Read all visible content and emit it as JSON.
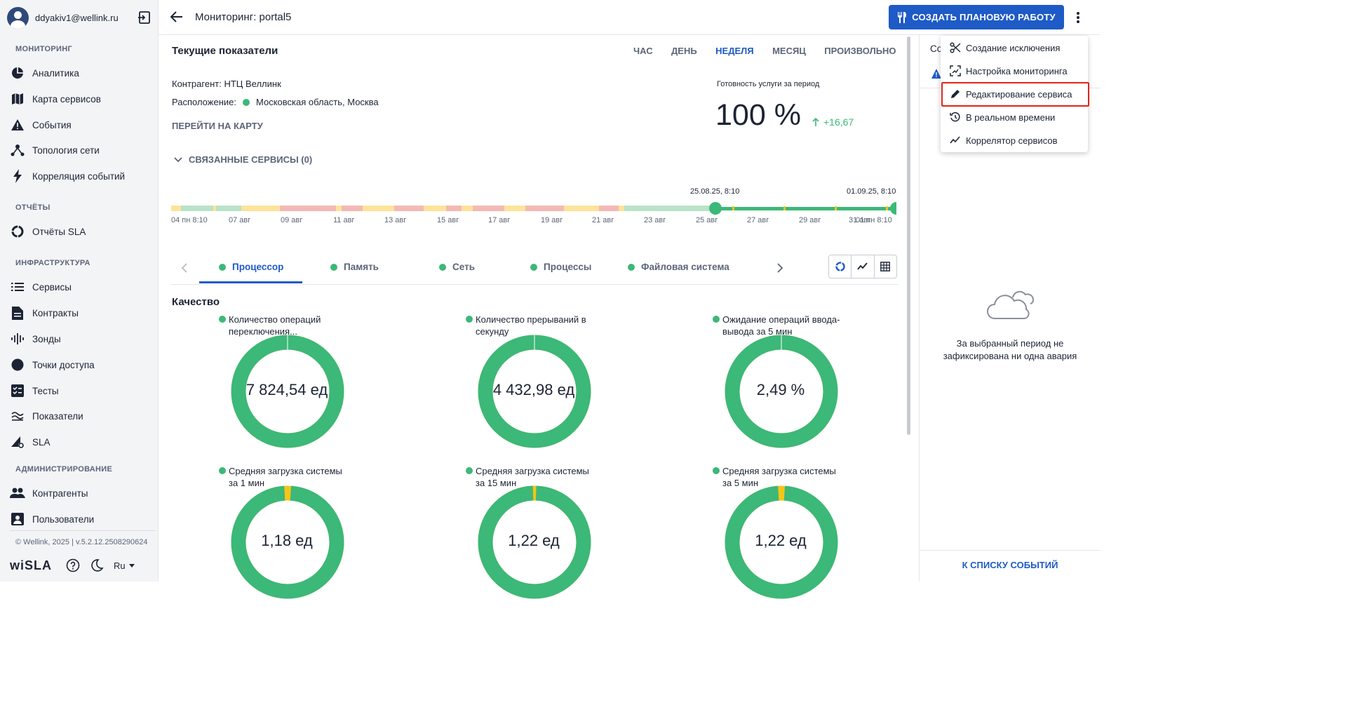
{
  "user": {
    "email": "ddyakiv1@wellink.ru"
  },
  "sidebar": {
    "sections": {
      "monitoring": "МОНИТОРИНГ",
      "reports": "ОТЧЁТЫ",
      "infrastructure": "ИНФРАСТРУКТУРА",
      "admin": "АДМИНИСТРИРОВАНИЕ"
    },
    "items": {
      "analytics": "Аналитика",
      "service_map": "Карта сервисов",
      "events": "События",
      "topology": "Топология сети",
      "correlation": "Корреляция событий",
      "sla_reports": "Отчёты SLA",
      "services": "Сервисы",
      "contracts": "Контракты",
      "probes": "Зонды",
      "access_points": "Точки доступа",
      "tests": "Тесты",
      "indicators": "Показатели",
      "sla": "SLA",
      "contractors": "Контрагенты",
      "users": "Пользователи"
    },
    "version": "© Wellink, 2025 | v.5.2.12.2508290624",
    "logo": "wiSLA",
    "lang": "Ru"
  },
  "header": {
    "title": "Мониторинг: portal5",
    "create_button": "СОЗДАТЬ ПЛАНОВУЮ РАБОТУ"
  },
  "main": {
    "section_title": "Текущие показатели",
    "periods": [
      "ЧАС",
      "ДЕНЬ",
      "НЕДЕЛЯ",
      "МЕСЯЦ",
      "ПРОИЗВОЛЬНО"
    ],
    "active_period": "НЕДЕЛЯ",
    "contractor": "Контрагент: НТЦ Веллинк",
    "location_label": "Расположение:",
    "location_value": "Московская область, Москва",
    "goto_map": "ПЕРЕЙТИ НА КАРТУ",
    "linked_services": "СВЯЗАННЫЕ СЕРВИСЫ (0)",
    "availability_label": "Готовность услуги за период",
    "availability_value": "100 %",
    "availability_delta": "+16,67",
    "availability_percent": 100,
    "timeline": {
      "marker_left_label": "25.08.25, 8:10",
      "marker_right_label": "01.09.25, 8:10",
      "ticks": [
        "04 пн 8:10",
        "07 авг",
        "09 авг",
        "11 авг",
        "13 авг",
        "15 авг",
        "17 авг",
        "19 авг",
        "21 авг",
        "23 авг",
        "25 авг",
        "27 авг",
        "29 авг",
        "31 авг",
        "01 пн 8:10"
      ]
    },
    "tabs": [
      "Процессор",
      "Память",
      "Сеть",
      "Процессы",
      "Файловая система"
    ],
    "active_tab": "Процессор",
    "quality_title": "Качество",
    "metrics": [
      {
        "label_line1": "Количество операций",
        "label_line2": "переключения...",
        "value": "7 824,54 ед",
        "fill": 1.0,
        "color": "#3cb878"
      },
      {
        "label_line1": "Количество прерываний в",
        "label_line2": "секунду",
        "value": "4 432,98 ед",
        "fill": 1.0,
        "color": "#3cb878"
      },
      {
        "label_line1": "Ожидание операций ввода-",
        "label_line2": "вывода за 5 мин",
        "value": "2,49 %",
        "fill": 1.0,
        "color": "#3cb878"
      },
      {
        "label_line1": "Средняя загрузка системы",
        "label_line2": "за 1 мин",
        "value": "1,18 ед",
        "fill": 0.98,
        "color": "#3cb878"
      },
      {
        "label_line1": "Средняя загрузка системы",
        "label_line2": "за 15 мин",
        "value": "1,22 ед",
        "fill": 0.99,
        "color": "#3cb878"
      },
      {
        "label_line1": "Средняя загрузка системы",
        "label_line2": "за 5 мин",
        "value": "1,22 ед",
        "fill": 0.98,
        "color": "#3cb878"
      }
    ]
  },
  "right_panel": {
    "tab_partial": "Со",
    "empty_message_line1": "За выбранный период не",
    "empty_message_line2": "зафиксирована ни одна авария",
    "events_link": "К СПИСКУ СОБЫТИЙ"
  },
  "menu": {
    "items": [
      "Создание исключения",
      "Настройка мониторинга",
      "Редактирование сервиса",
      "В реальном времени",
      "Коррелятор сервисов"
    ],
    "highlighted": "Редактирование сервиса"
  },
  "colors": {
    "accent": "#1e5bc6",
    "ok": "#3cb878",
    "warn": "#f5c518",
    "highlight": "#e0231c"
  }
}
